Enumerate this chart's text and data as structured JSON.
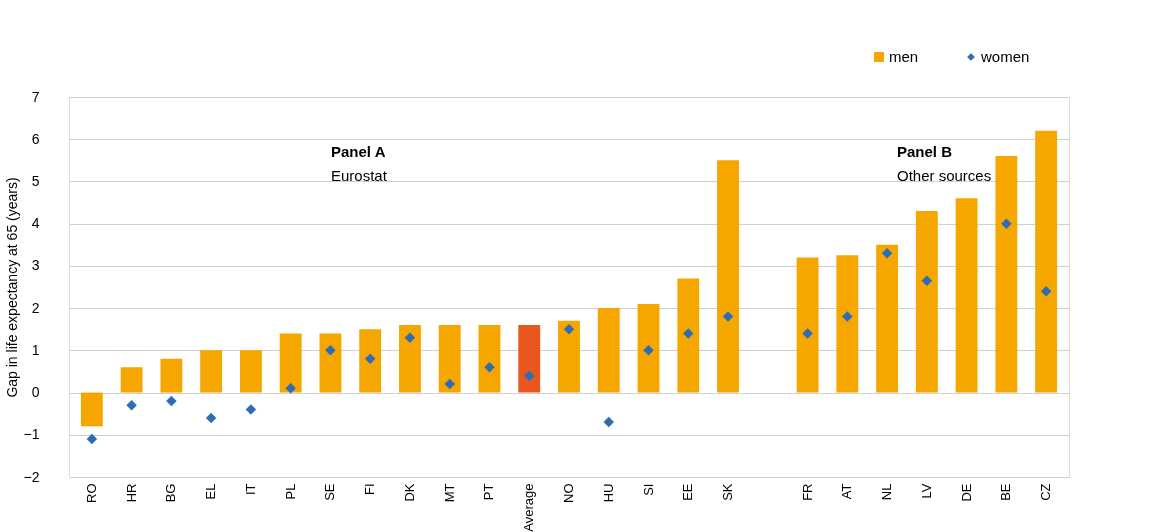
{
  "chart_data": {
    "type": "bar",
    "ylabel": "Gap in life expectancy at 65 (years)",
    "categories": [
      "RO",
      "HR",
      "BG",
      "EL",
      "IT",
      "PL",
      "SE",
      "FI",
      "DK",
      "MT",
      "PT",
      "Average",
      "NO",
      "HU",
      "SI",
      "EE",
      "SK",
      null,
      "FR",
      "AT",
      "NL",
      "LV",
      "DE",
      "BE",
      "CZ"
    ],
    "series": [
      {
        "name": "men",
        "color": "#f5a700",
        "colors": [
          "#f5a700",
          "#f5a700",
          "#f5a700",
          "#f5a700",
          "#f5a700",
          "#f5a700",
          "#f5a700",
          "#f5a700",
          "#f5a700",
          "#f5a700",
          "#f5a700",
          "#e8581c",
          "#f5a700",
          "#f5a700",
          "#f5a700",
          "#f5a700",
          "#f5a700",
          null,
          "#f5a700",
          "#f5a700",
          "#f5a700",
          "#f5a700",
          "#f5a700",
          "#f5a700",
          "#f5a700"
        ],
        "values": [
          -0.8,
          0.6,
          0.8,
          1.0,
          1.0,
          1.4,
          1.4,
          1.5,
          1.6,
          1.6,
          1.6,
          1.6,
          1.7,
          2.0,
          2.1,
          2.7,
          5.5,
          null,
          3.2,
          3.25,
          3.5,
          4.3,
          4.6,
          5.6,
          6.2
        ]
      },
      {
        "name": "women",
        "type": "scatter",
        "color": "#2e6db4",
        "marker": "diamond",
        "values": [
          -1.1,
          -0.3,
          -0.2,
          -0.6,
          -0.4,
          0.1,
          1.0,
          0.8,
          1.3,
          0.2,
          0.6,
          0.4,
          1.5,
          -0.7,
          1.0,
          1.4,
          1.8,
          null,
          1.4,
          1.8,
          3.3,
          2.65,
          null,
          4.0,
          2.4
        ]
      }
    ],
    "ylim": [
      -2,
      7
    ],
    "yticks": [
      -2,
      -1,
      0,
      1,
      2,
      3,
      4,
      5,
      6,
      7
    ],
    "grid": "y",
    "legend": "top right",
    "annotations": [
      "Panel A",
      "Eurostat",
      "Panel B",
      "Other sources"
    ]
  }
}
